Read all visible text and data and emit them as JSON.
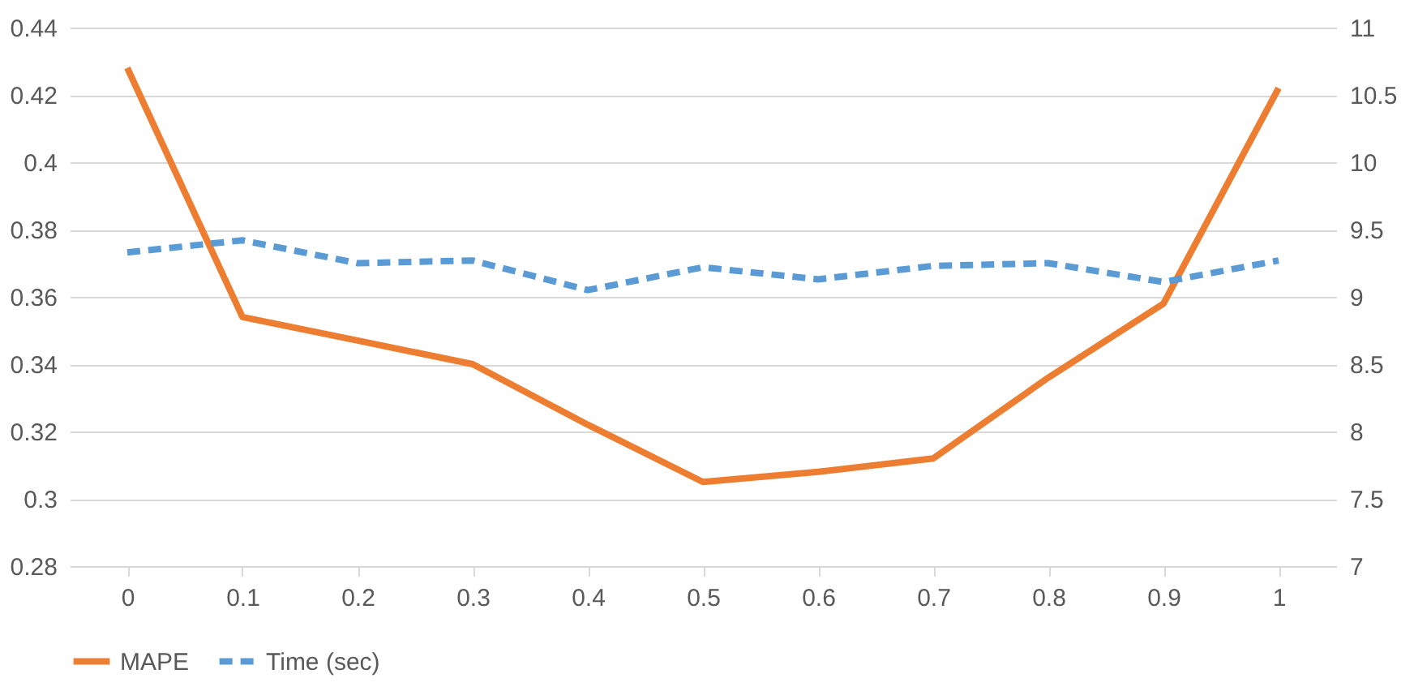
{
  "chart_data": {
    "type": "line",
    "categories": [
      "0",
      "0.1",
      "0.2",
      "0.3",
      "0.4",
      "0.5",
      "0.6",
      "0.7",
      "0.8",
      "0.9",
      "1"
    ],
    "series": [
      {
        "name": "MAPE",
        "color": "#ed7d31",
        "line_style": "solid",
        "values": [
          0.428,
          0.354,
          0.347,
          0.34,
          0.322,
          0.305,
          0.308,
          0.312,
          0.336,
          0.358,
          0.422
        ]
      },
      {
        "name": "Time (sec)",
        "color": "#5b9bd5",
        "line_style": "dashed",
        "axis": "y2",
        "values": [
          9.33,
          9.42,
          9.25,
          9.27,
          9.05,
          9.22,
          9.13,
          9.23,
          9.25,
          9.11,
          9.27
        ]
      }
    ],
    "ylim": [
      0.28,
      0.44
    ],
    "yticks": [
      0.28,
      0.3,
      0.32,
      0.34,
      0.36,
      0.38,
      0.4,
      0.42,
      0.44
    ],
    "y2lim": [
      7,
      11
    ],
    "y2ticks": [
      7,
      7.5,
      8,
      8.5,
      9,
      9.5,
      10,
      10.5,
      11
    ],
    "grid": "y",
    "legend": "bottom",
    "marker": "none"
  }
}
